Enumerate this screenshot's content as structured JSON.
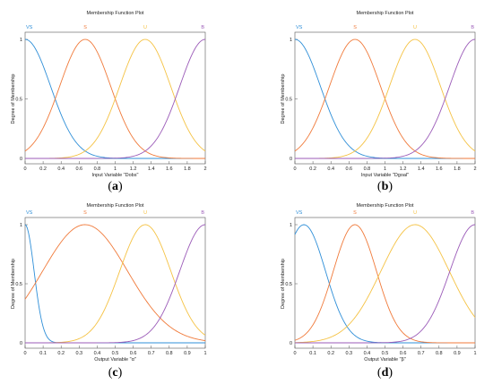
{
  "colors": {
    "VS": "#2f8fd8",
    "S": "#f07a3a",
    "U": "#f5c243",
    "B": "#9b5bb8",
    "baseline": "#27b3c9"
  },
  "chart_data": [
    {
      "id": "a",
      "type": "line",
      "title": "Membership Function Plot",
      "xlabel": "Input Variable \"Dobs\"",
      "ylabel": "Degree of Membership",
      "panel_label": "a",
      "xlim": [
        0,
        2
      ],
      "ylim": [
        0,
        1
      ],
      "xticks": [
        0,
        0.2,
        0.4,
        0.6,
        0.8,
        1,
        1.2,
        1.4,
        1.6,
        1.8,
        2
      ],
      "xtick_labels": [
        "0",
        "0.2",
        "0.4",
        "0.6",
        "0.8",
        "1",
        "1.2",
        "1.4",
        "1.6",
        "1.8",
        "2"
      ],
      "yticks": [
        0,
        0.5,
        1
      ],
      "ytick_labels": [
        "0",
        "0.5",
        "1"
      ],
      "grid": false,
      "series": [
        {
          "name": "VS",
          "color_key": "VS",
          "mf": "gauss",
          "center": 0,
          "sigma": 0.283,
          "label_x": 0
        },
        {
          "name": "S",
          "color_key": "S",
          "mf": "gauss",
          "center": 0.667,
          "sigma": 0.283,
          "label_x": 0.667
        },
        {
          "name": "U",
          "color_key": "U",
          "mf": "gauss",
          "center": 1.333,
          "sigma": 0.283,
          "label_x": 1.333
        },
        {
          "name": "B",
          "color_key": "B",
          "mf": "gauss",
          "center": 2,
          "sigma": 0.283,
          "label_x": 2
        }
      ]
    },
    {
      "id": "b",
      "type": "line",
      "title": "Membership Function Plot",
      "xlabel": "Input Variable \"Dgoal\"",
      "ylabel": "Degree of Membership",
      "panel_label": "b",
      "xlim": [
        0,
        2
      ],
      "ylim": [
        0,
        1
      ],
      "xticks": [
        0,
        0.2,
        0.4,
        0.6,
        0.8,
        1,
        1.2,
        1.4,
        1.6,
        1.8,
        2
      ],
      "xtick_labels": [
        "0",
        "0.2",
        "0.4",
        "0.6",
        "0.8",
        "1",
        "1.2",
        "1.4",
        "1.6",
        "1.8",
        "2"
      ],
      "yticks": [
        0,
        0.5,
        1
      ],
      "ytick_labels": [
        "0",
        "0.5",
        "1"
      ],
      "grid": false,
      "series": [
        {
          "name": "VS",
          "color_key": "VS",
          "mf": "gauss",
          "center": 0,
          "sigma": 0.283,
          "label_x": 0
        },
        {
          "name": "S",
          "color_key": "S",
          "mf": "gauss",
          "center": 0.667,
          "sigma": 0.283,
          "label_x": 0.667
        },
        {
          "name": "U",
          "color_key": "U",
          "mf": "gauss",
          "center": 1.333,
          "sigma": 0.283,
          "label_x": 1.333
        },
        {
          "name": "B",
          "color_key": "B",
          "mf": "gauss",
          "center": 2,
          "sigma": 0.283,
          "label_x": 2
        }
      ]
    },
    {
      "id": "c",
      "type": "line",
      "title": "Membership Function Plot",
      "xlabel": "Output Variable \"α\"",
      "ylabel": "Degree of Membership",
      "panel_label": "c",
      "xlim": [
        0,
        1
      ],
      "ylim": [
        0,
        1
      ],
      "xticks": [
        0,
        0.1,
        0.2,
        0.3,
        0.4,
        0.5,
        0.6,
        0.7,
        0.8,
        0.9,
        1
      ],
      "xtick_labels": [
        "0",
        "0.1",
        "0.2",
        "0.3",
        "0.4",
        "0.5",
        "0.6",
        "0.7",
        "0.8",
        "0.9",
        "1"
      ],
      "yticks": [
        0,
        0.5,
        1
      ],
      "ytick_labels": [
        "0",
        "0.5",
        "1"
      ],
      "grid": false,
      "series": [
        {
          "name": "VS",
          "color_key": "VS",
          "mf": "gauss",
          "center": 0,
          "sigma": 0.05,
          "label_x": 0.01
        },
        {
          "name": "S",
          "color_key": "S",
          "mf": "gauss",
          "center": 0.333,
          "sigma": 0.236,
          "label_x": 0.333
        },
        {
          "name": "U",
          "color_key": "U",
          "mf": "gauss",
          "center": 0.667,
          "sigma": 0.142,
          "label_x": 0.667
        },
        {
          "name": "B",
          "color_key": "B",
          "mf": "gauss",
          "center": 1,
          "sigma": 0.142,
          "label_x": 1
        }
      ]
    },
    {
      "id": "d",
      "type": "line",
      "title": "Membership Function Plot",
      "xlabel": "Output Variable \"β\"",
      "ylabel": "Degree of Membership",
      "panel_label": "d",
      "xlim": [
        0,
        1
      ],
      "ylim": [
        0,
        1
      ],
      "xticks": [
        0,
        0.1,
        0.2,
        0.3,
        0.4,
        0.5,
        0.6,
        0.7,
        0.8,
        0.9,
        1
      ],
      "xtick_labels": [
        "0",
        "0.1",
        "0.2",
        "0.3",
        "0.4",
        "0.5",
        "0.6",
        "0.7",
        "0.8",
        "0.9",
        "1"
      ],
      "yticks": [
        0,
        0.5,
        1
      ],
      "ytick_labels": [
        "0",
        "0.5",
        "1"
      ],
      "grid": false,
      "series": [
        {
          "name": "VS",
          "color_key": "VS",
          "mf": "gauss",
          "center": 0.05,
          "sigma": 0.12,
          "label_x": 0.01
        },
        {
          "name": "S",
          "color_key": "S",
          "mf": "gauss",
          "center": 0.333,
          "sigma": 0.12,
          "label_x": 0.333
        },
        {
          "name": "U",
          "color_key": "U",
          "mf": "gauss",
          "center": 0.667,
          "sigma": 0.19,
          "label_x": 0.667
        },
        {
          "name": "B",
          "color_key": "B",
          "mf": "gauss",
          "center": 1,
          "sigma": 0.14,
          "label_x": 1
        }
      ]
    }
  ]
}
